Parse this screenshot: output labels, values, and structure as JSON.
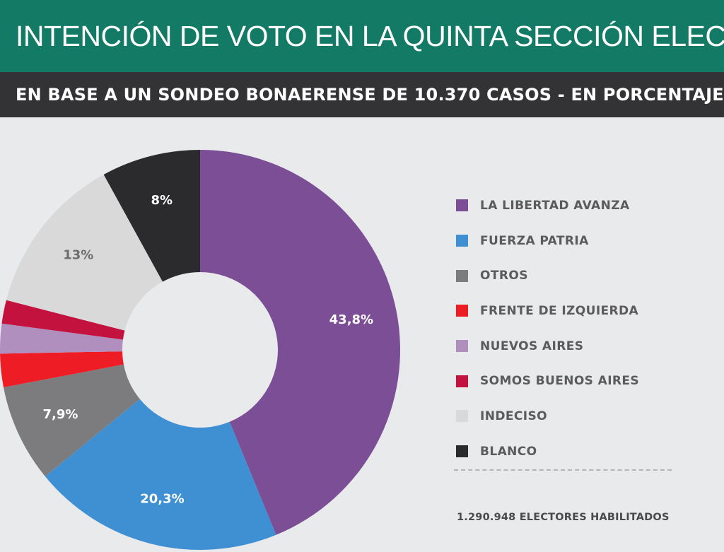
{
  "header": {
    "title": "INTENCIÓN DE VOTO EN LA QUINTA SECCIÓN ELECTORAL",
    "subtitle": "EN BASE A UN SONDEO BONAERENSE DE 10.370 CASOS - EN PORCENTAJE"
  },
  "chart_data": {
    "type": "pie",
    "title": "INTENCIÓN DE VOTO EN LA QUINTA SECCIÓN ELECTORAL",
    "subtitle": "EN BASE A UN SONDEO BONAERENSE DE 10.370 CASOS - EN PORCENTAJE",
    "style": "donut",
    "legend_position": "right",
    "categories": [
      "LA LIBERTAD AVANZA",
      "FUERZA PATRIA",
      "OTROS",
      "FRENTE DE IZQUIERDA",
      "NUEVOS AIRES",
      "SOMOS BUENOS AIRES",
      "INDECISO",
      "BLANCO"
    ],
    "values": [
      43.8,
      20.3,
      7.9,
      2.7,
      2.4,
      1.9,
      13,
      8
    ],
    "data_labels": [
      "43,8%",
      "20,3%",
      "7,9%",
      "",
      "",
      "",
      "13%",
      "8%"
    ],
    "colors": [
      "#7b4e96",
      "#3f8fd3",
      "#7c7c7e",
      "#ee1c25",
      "#b08fbf",
      "#c3123d",
      "#d9d9da",
      "#2b2a2c"
    ],
    "label_colors": [
      "#ffffff",
      "#ffffff",
      "#ffffff",
      "#ffffff",
      "#ffffff",
      "#ffffff",
      "#6d6d6f",
      "#ffffff"
    ]
  },
  "footnote": "1.290.948 ELECTORES HABILITADOS"
}
